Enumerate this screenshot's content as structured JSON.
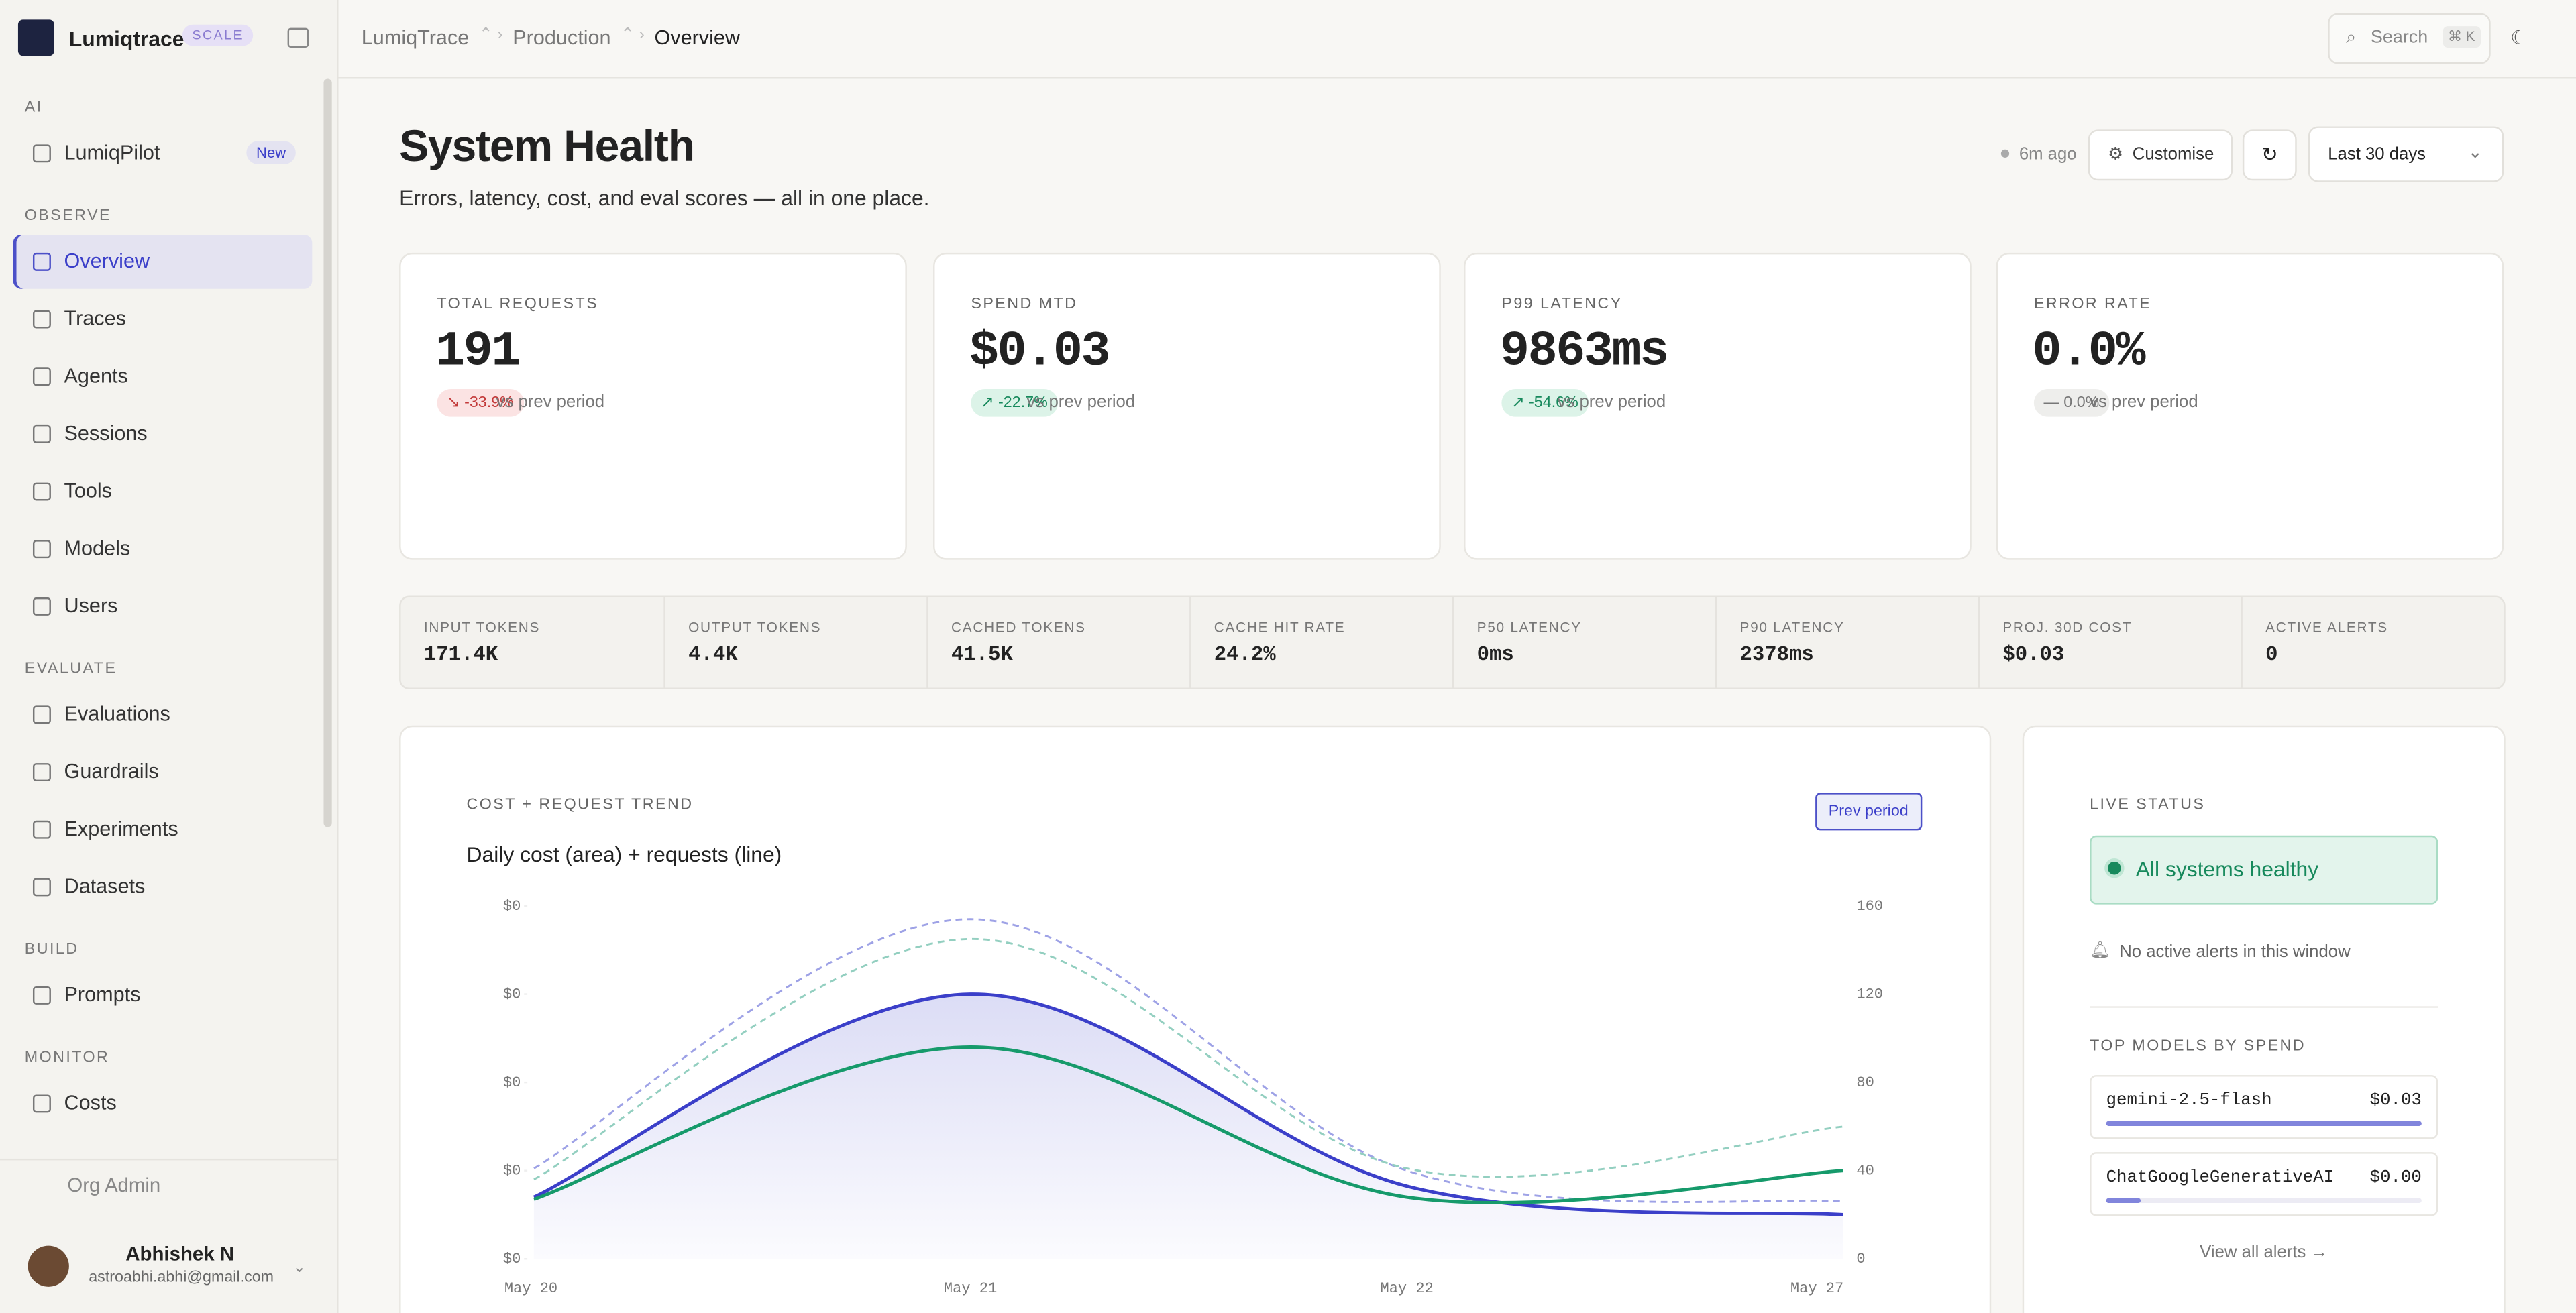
{
  "sidebar": {
    "brand": "Lumiqtrace",
    "plan": "SCALE",
    "sections": [
      {
        "title": "AI",
        "items": [
          {
            "label": "LumiqPilot",
            "badge": "New"
          }
        ]
      },
      {
        "title": "OBSERVE",
        "items": [
          {
            "label": "Overview"
          },
          {
            "label": "Traces"
          },
          {
            "label": "Agents"
          },
          {
            "label": "Sessions"
          },
          {
            "label": "Tools"
          },
          {
            "label": "Models"
          },
          {
            "label": "Users"
          }
        ]
      },
      {
        "title": "EVALUATE",
        "items": [
          {
            "label": "Evaluations"
          },
          {
            "label": "Guardrails"
          },
          {
            "label": "Experiments"
          },
          {
            "label": "Datasets"
          }
        ]
      },
      {
        "title": "BUILD",
        "items": [
          {
            "label": "Prompts"
          }
        ]
      },
      {
        "title": "MONITOR",
        "items": [
          {
            "label": "Costs"
          }
        ]
      }
    ],
    "org_admin": "Org Admin",
    "user": {
      "name": "Abhishek N",
      "email": "astroabhi.abhi@gmail.com"
    }
  },
  "topbar": {
    "breadcrumbs": [
      "LumiqTrace",
      "Production",
      "Overview"
    ],
    "search": "Search",
    "shortcut": "⌘ K"
  },
  "header": {
    "title": "System Health",
    "subtitle": "Errors, latency, cost, and eval scores — all in one place.",
    "updated": "6m ago",
    "customise": "Customise",
    "range": "Last 30 days"
  },
  "kpis": [
    {
      "label": "TOTAL REQUESTS",
      "value": "191",
      "delta": "-33.9%",
      "trend": "down",
      "note": "vs prev period"
    },
    {
      "label": "SPEND MTD",
      "value": "$0.03",
      "delta": "-22.7%",
      "trend": "up",
      "note": "vs prev period"
    },
    {
      "label": "P99 LATENCY",
      "value": "9863ms",
      "delta": "-54.6%",
      "trend": "up",
      "note": "vs prev period"
    },
    {
      "label": "ERROR RATE",
      "value": "0.0%",
      "delta": "0.0%",
      "trend": "flat",
      "note": "vs prev period"
    }
  ],
  "stats": [
    {
      "label": "INPUT TOKENS",
      "value": "171.4K"
    },
    {
      "label": "OUTPUT TOKENS",
      "value": "4.4K"
    },
    {
      "label": "CACHED TOKENS",
      "value": "41.5K"
    },
    {
      "label": "CACHE HIT RATE",
      "value": "24.2%"
    },
    {
      "label": "P50 LATENCY",
      "value": "0ms"
    },
    {
      "label": "P90 LATENCY",
      "value": "2378ms"
    },
    {
      "label": "PROJ. 30D COST",
      "value": "$0.03"
    },
    {
      "label": "ACTIVE ALERTS",
      "value": "0"
    }
  ],
  "trend_chart": {
    "type": "line",
    "label": "COST + REQUEST TREND",
    "title": "Daily cost (area) + requests (line)",
    "button": "Prev period",
    "categories": [
      "May 20",
      "May 21",
      "May 22",
      "May 27"
    ],
    "ylim": [
      0,
      0.016
    ],
    "yticks": [
      {
        "value": 0,
        "label": "$0"
      },
      {
        "value": 0.004,
        "label": "$0"
      },
      {
        "value": 0.008,
        "label": "$0"
      },
      {
        "value": 0.012,
        "label": "$0"
      },
      {
        "value": 0.016,
        "label": "$0"
      }
    ],
    "y2lim": [
      0,
      160
    ],
    "y2ticks": [
      0,
      40,
      80,
      120,
      160
    ],
    "series": [
      {
        "color": "#9ea2e6",
        "dashed": true,
        "values": [
          0.0041,
          0.0154,
          0.004,
          0.0026
        ]
      },
      {
        "color": "#93cfc0",
        "dashed": true,
        "axis": "y2",
        "values": [
          36,
          145,
          41,
          60
        ]
      },
      {
        "color": "#3b3fc9",
        "area": true,
        "values": [
          0.0028,
          0.012,
          0.0033,
          0.002
        ]
      },
      {
        "color": "#169a6b",
        "axis": "y2",
        "values": [
          27,
          96,
          28,
          40
        ]
      }
    ]
  },
  "live": {
    "label": "LIVE STATUS",
    "status": "All systems healthy",
    "alerts": "No active alerts in this window",
    "models_title": "TOP MODELS BY SPEND",
    "models": [
      {
        "name": "gemini-2.5-flash",
        "spend": "$0.03",
        "share": 100
      },
      {
        "name": "ChatGoogleGenerativeAI",
        "spend": "$0.00",
        "share": 11
      }
    ],
    "link": "View all alerts"
  }
}
